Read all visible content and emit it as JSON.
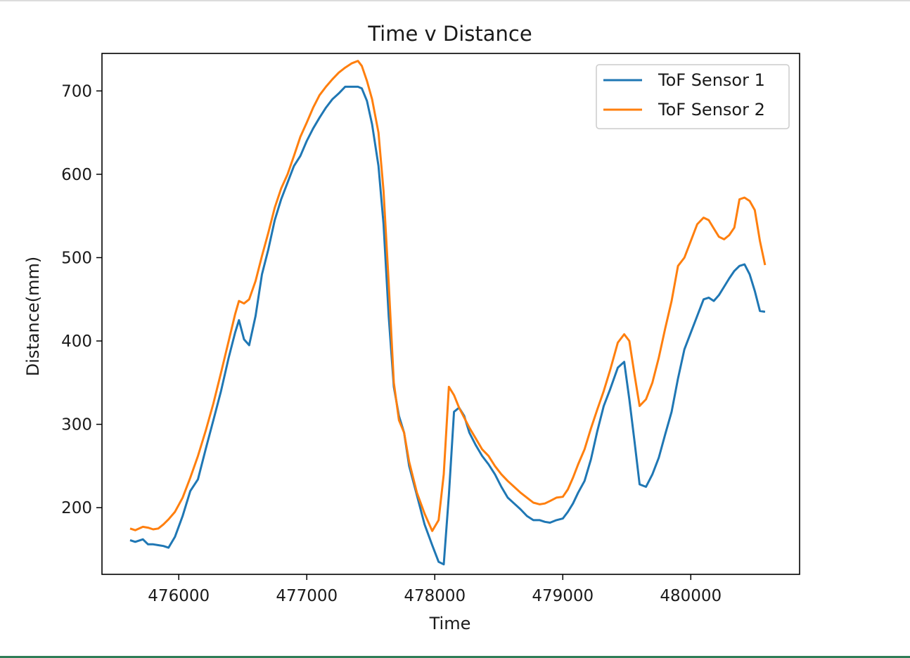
{
  "chart_data": {
    "type": "line",
    "title": "Time v Distance",
    "xlabel": "Time",
    "ylabel": "Distance(mm)",
    "xlim": [
      475400,
      480850
    ],
    "ylim": [
      120,
      745
    ],
    "xticks": [
      476000,
      477000,
      478000,
      479000,
      480000
    ],
    "yticks": [
      200,
      300,
      400,
      500,
      600,
      700
    ],
    "grid": false,
    "legend_position": "top-right",
    "series": [
      {
        "name": "ToF Sensor 1",
        "color": "#1f77b4",
        "x": [
          475620,
          475660,
          475720,
          475760,
          475800,
          475840,
          475880,
          475920,
          475970,
          476030,
          476090,
          476150,
          476210,
          476270,
          476330,
          476390,
          476440,
          476470,
          476510,
          476550,
          476600,
          476650,
          476700,
          476750,
          476800,
          476850,
          476900,
          476950,
          477000,
          477050,
          477100,
          477150,
          477200,
          477250,
          477300,
          477350,
          477400,
          477430,
          477470,
          477510,
          477560,
          477600,
          477640,
          477680,
          477720,
          477760,
          477800,
          477860,
          477920,
          477980,
          478030,
          478070,
          478110,
          478150,
          478190,
          478230,
          478270,
          478320,
          478370,
          478420,
          478470,
          478520,
          478570,
          478620,
          478670,
          478720,
          478770,
          478820,
          478860,
          478900,
          478950,
          479000,
          479040,
          479080,
          479120,
          479170,
          479220,
          479270,
          479320,
          479370,
          479430,
          479480,
          479520,
          479560,
          479600,
          479650,
          479700,
          479750,
          479800,
          479850,
          479900,
          479950,
          480000,
          480050,
          480100,
          480140,
          480180,
          480220,
          480260,
          480300,
          480340,
          480380,
          480420,
          480460,
          480500,
          480540,
          480580
        ],
        "y": [
          161,
          159,
          162,
          156,
          156,
          155,
          154,
          152,
          165,
          190,
          220,
          234,
          270,
          305,
          340,
          380,
          410,
          425,
          402,
          395,
          430,
          480,
          510,
          545,
          570,
          590,
          610,
          622,
          640,
          655,
          668,
          680,
          690,
          697,
          705,
          705,
          705,
          703,
          688,
          660,
          610,
          540,
          430,
          345,
          310,
          290,
          250,
          215,
          180,
          155,
          135,
          132,
          215,
          315,
          320,
          310,
          290,
          275,
          262,
          252,
          240,
          225,
          212,
          205,
          198,
          190,
          185,
          185,
          183,
          182,
          185,
          187,
          195,
          205,
          218,
          232,
          258,
          292,
          322,
          342,
          368,
          375,
          330,
          280,
          228,
          225,
          240,
          260,
          288,
          315,
          355,
          390,
          410,
          430,
          450,
          452,
          448,
          455,
          465,
          475,
          484,
          490,
          492,
          480,
          460,
          436,
          430
        ],
        "ylast": 435
      },
      {
        "name": "ToF Sensor 2",
        "color": "#ff7f0e",
        "x": [
          475620,
          475660,
          475720,
          475760,
          475800,
          475840,
          475880,
          475920,
          475970,
          476030,
          476090,
          476150,
          476210,
          476270,
          476330,
          476390,
          476440,
          476470,
          476510,
          476550,
          476600,
          476650,
          476700,
          476750,
          476800,
          476850,
          476900,
          476950,
          477000,
          477050,
          477100,
          477150,
          477200,
          477250,
          477300,
          477350,
          477400,
          477430,
          477470,
          477510,
          477560,
          477600,
          477640,
          477680,
          477720,
          477760,
          477800,
          477860,
          477920,
          477980,
          478030,
          478070,
          478110,
          478150,
          478190,
          478230,
          478270,
          478320,
          478370,
          478420,
          478470,
          478520,
          478570,
          478620,
          478670,
          478720,
          478770,
          478820,
          478860,
          478900,
          478950,
          479000,
          479040,
          479080,
          479120,
          479170,
          479220,
          479270,
          479320,
          479370,
          479430,
          479480,
          479520,
          479560,
          479600,
          479650,
          479700,
          479750,
          479800,
          479850,
          479900,
          479950,
          480000,
          480050,
          480100,
          480140,
          480180,
          480220,
          480260,
          480300,
          480340,
          480380,
          480420,
          480460,
          480500,
          480540,
          480580
        ],
        "y": [
          175,
          173,
          177,
          176,
          174,
          175,
          180,
          186,
          195,
          212,
          236,
          262,
          292,
          325,
          362,
          400,
          432,
          448,
          445,
          450,
          472,
          502,
          530,
          560,
          583,
          600,
          622,
          645,
          662,
          680,
          695,
          705,
          714,
          722,
          728,
          733,
          736,
          730,
          712,
          690,
          650,
          580,
          470,
          350,
          305,
          290,
          255,
          218,
          193,
          172,
          185,
          240,
          345,
          335,
          320,
          308,
          296,
          283,
          270,
          262,
          250,
          240,
          232,
          225,
          218,
          212,
          206,
          204,
          205,
          208,
          212,
          213,
          222,
          236,
          252,
          270,
          295,
          318,
          340,
          365,
          398,
          408,
          400,
          360,
          322,
          330,
          350,
          380,
          415,
          448,
          490,
          500,
          520,
          540,
          548,
          545,
          535,
          525,
          522,
          527,
          536,
          570,
          572,
          568,
          557,
          520,
          492
        ],
        "ylast": 491
      }
    ]
  },
  "legend": {
    "entries": [
      "ToF Sensor 1",
      "ToF Sensor 2"
    ]
  }
}
